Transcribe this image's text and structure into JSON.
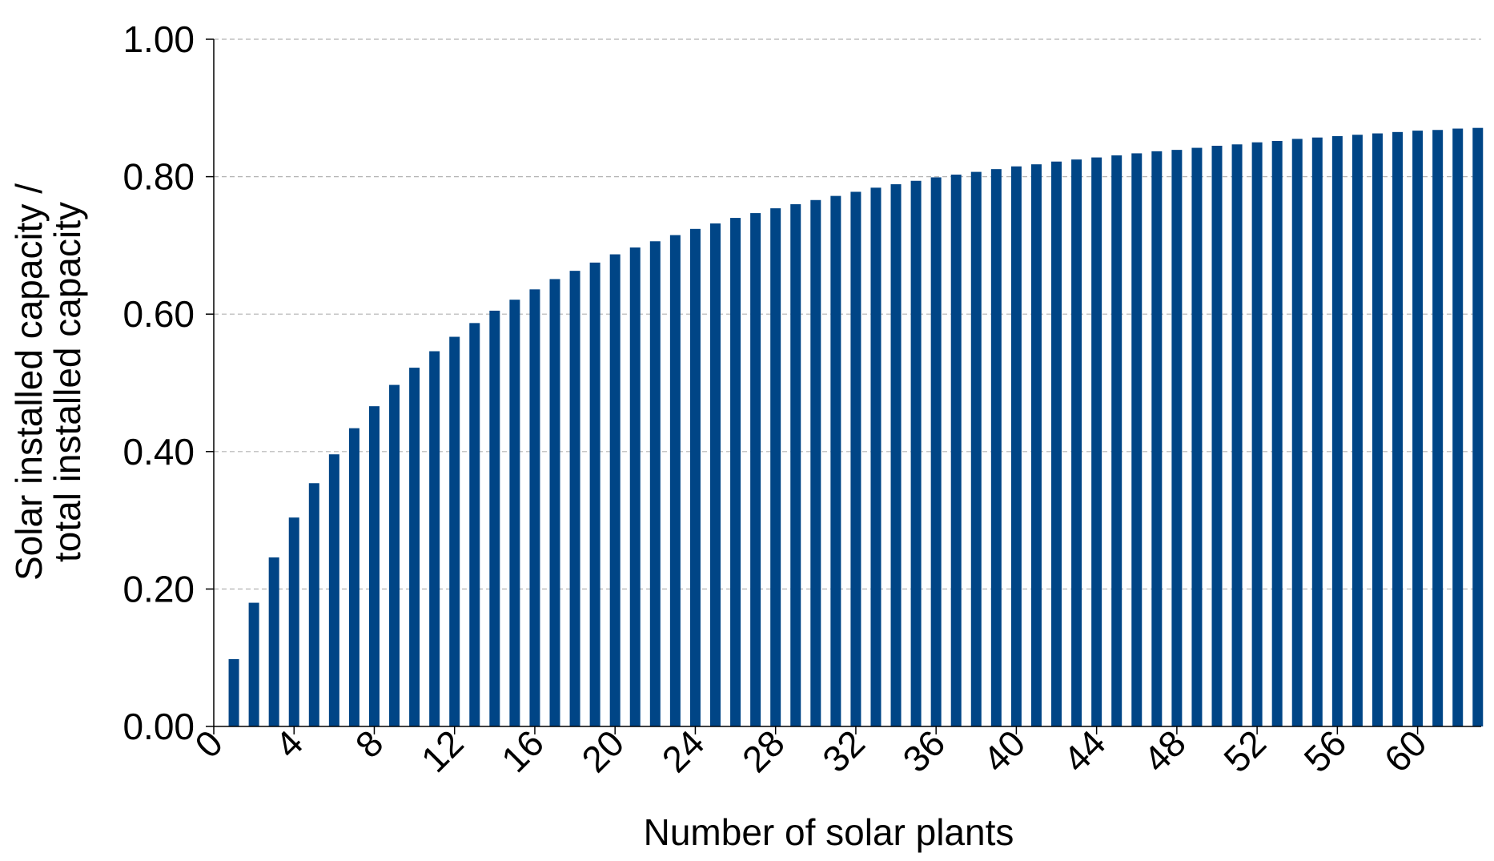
{
  "colors": {
    "bar": "#004586",
    "axis": "#000000",
    "grid": "#b3b3b3",
    "background": "#ffffff"
  },
  "chart_data": {
    "type": "bar",
    "title": "",
    "xlabel": "Number of solar plants",
    "ylabel_lines": [
      "Solar installed capacity /",
      "total installed capacity"
    ],
    "ylim": [
      0,
      1
    ],
    "y_ticks": [
      "0.00",
      "0.20",
      "0.40",
      "0.60",
      "0.80",
      "1.00"
    ],
    "y_tick_values": [
      0,
      0.2,
      0.4,
      0.6,
      0.8,
      1.0
    ],
    "x_ticks": [
      "0",
      "4",
      "8",
      "12",
      "16",
      "20",
      "24",
      "28",
      "32",
      "36",
      "40",
      "44",
      "48",
      "52",
      "56",
      "60"
    ],
    "x_tick_values": [
      0,
      4,
      8,
      12,
      16,
      20,
      24,
      28,
      32,
      36,
      40,
      44,
      48,
      52,
      56,
      60
    ],
    "x_range": [
      0,
      63
    ],
    "grid": "horizontal dashed",
    "categories": [
      1,
      2,
      3,
      4,
      5,
      6,
      7,
      8,
      9,
      10,
      11,
      12,
      13,
      14,
      15,
      16,
      17,
      18,
      19,
      20,
      21,
      22,
      23,
      24,
      25,
      26,
      27,
      28,
      29,
      30,
      31,
      32,
      33,
      34,
      35,
      36,
      37,
      38,
      39,
      40,
      41,
      42,
      43,
      44,
      45,
      46,
      47,
      48,
      49,
      50,
      51,
      52,
      53,
      54,
      55,
      56,
      57,
      58,
      59,
      60,
      61,
      62,
      63
    ],
    "values": [
      0.098,
      0.18,
      0.246,
      0.304,
      0.354,
      0.396,
      0.434,
      0.466,
      0.497,
      0.522,
      0.546,
      0.567,
      0.587,
      0.605,
      0.621,
      0.636,
      0.651,
      0.663,
      0.675,
      0.687,
      0.697,
      0.706,
      0.715,
      0.724,
      0.732,
      0.74,
      0.747,
      0.754,
      0.76,
      0.766,
      0.772,
      0.778,
      0.784,
      0.789,
      0.794,
      0.799,
      0.803,
      0.807,
      0.811,
      0.815,
      0.818,
      0.822,
      0.825,
      0.828,
      0.831,
      0.834,
      0.837,
      0.839,
      0.842,
      0.845,
      0.847,
      0.85,
      0.852,
      0.855,
      0.857,
      0.859,
      0.861,
      0.863,
      0.865,
      0.867,
      0.868,
      0.87,
      0.871
    ]
  }
}
